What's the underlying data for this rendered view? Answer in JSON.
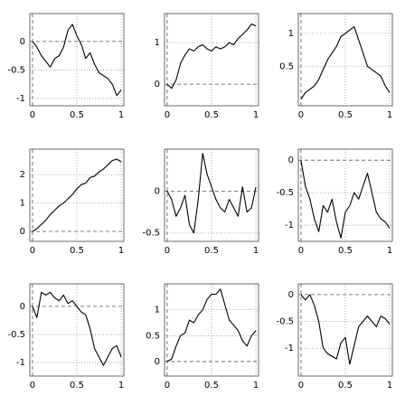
{
  "chart_data": [
    {
      "type": "line",
      "x": [
        0,
        0.05,
        0.1,
        0.15,
        0.2,
        0.25,
        0.3,
        0.35,
        0.4,
        0.45,
        0.5,
        0.55,
        0.6,
        0.65,
        0.7,
        0.75,
        0.8,
        0.85,
        0.9,
        0.95,
        1
      ],
      "values": [
        0,
        -0.1,
        -0.25,
        -0.35,
        -0.45,
        -0.3,
        -0.25,
        -0.1,
        0.2,
        0.3,
        0.1,
        -0.05,
        -0.3,
        -0.2,
        -0.4,
        -0.55,
        -0.6,
        -0.65,
        -0.75,
        -0.95,
        -0.85
      ],
      "color": "#000000",
      "xlim": [
        -0.03,
        1.03
      ],
      "xticks": [
        0,
        0.5,
        1
      ],
      "ylim": [
        -1.13,
        0.49
      ],
      "yticks": [
        -1,
        -0.5,
        0
      ],
      "grid": true
    },
    {
      "type": "line",
      "x": [
        0,
        0.05,
        0.1,
        0.15,
        0.2,
        0.25,
        0.3,
        0.35,
        0.4,
        0.45,
        0.5,
        0.55,
        0.6,
        0.65,
        0.7,
        0.75,
        0.8,
        0.85,
        0.9,
        0.95,
        1
      ],
      "values": [
        0,
        -0.1,
        0.1,
        0.5,
        0.7,
        0.85,
        0.8,
        0.9,
        0.95,
        0.85,
        0.8,
        0.9,
        0.85,
        0.9,
        1.0,
        0.95,
        1.1,
        1.2,
        1.3,
        1.45,
        1.4
      ],
      "color": "#000000",
      "xlim": [
        -0.03,
        1.03
      ],
      "xticks": [
        0,
        0.5,
        1
      ],
      "ylim": [
        -0.52,
        1.7
      ],
      "yticks": [
        0,
        1
      ],
      "grid": true
    },
    {
      "type": "line",
      "x": [
        0,
        0.05,
        0.1,
        0.15,
        0.2,
        0.25,
        0.3,
        0.35,
        0.4,
        0.45,
        0.5,
        0.55,
        0.6,
        0.65,
        0.7,
        0.75,
        0.8,
        0.85,
        0.9,
        0.95,
        1
      ],
      "values": [
        0,
        0.1,
        0.15,
        0.2,
        0.3,
        0.45,
        0.6,
        0.7,
        0.8,
        0.95,
        1.0,
        1.05,
        1.1,
        0.9,
        0.7,
        0.5,
        0.45,
        0.4,
        0.35,
        0.2,
        0.1
      ],
      "color": "#000000",
      "xlim": [
        -0.03,
        1.03
      ],
      "xticks": [
        0,
        0.5,
        1
      ],
      "ylim": [
        -0.1,
        1.3
      ],
      "yticks": [
        0.5,
        1
      ],
      "grid": true
    },
    {
      "type": "line",
      "x": [
        0,
        0.05,
        0.1,
        0.15,
        0.2,
        0.25,
        0.3,
        0.35,
        0.4,
        0.45,
        0.5,
        0.55,
        0.6,
        0.65,
        0.7,
        0.75,
        0.8,
        0.85,
        0.9,
        0.95,
        1
      ],
      "values": [
        0,
        0.1,
        0.25,
        0.4,
        0.6,
        0.75,
        0.9,
        1.0,
        1.15,
        1.3,
        1.5,
        1.65,
        1.7,
        1.9,
        1.95,
        2.1,
        2.2,
        2.35,
        2.5,
        2.55,
        2.45
      ],
      "color": "#000000",
      "xlim": [
        -0.03,
        1.03
      ],
      "xticks": [
        0,
        0.5,
        1
      ],
      "ylim": [
        -0.35,
        2.9
      ],
      "yticks": [
        0,
        1,
        2
      ],
      "grid": true
    },
    {
      "type": "line",
      "x": [
        0,
        0.05,
        0.1,
        0.15,
        0.2,
        0.25,
        0.3,
        0.35,
        0.4,
        0.45,
        0.5,
        0.55,
        0.6,
        0.65,
        0.7,
        0.75,
        0.8,
        0.85,
        0.9,
        0.95,
        1
      ],
      "values": [
        0,
        -0.1,
        -0.3,
        -0.2,
        -0.05,
        -0.4,
        -0.5,
        -0.1,
        0.45,
        0.2,
        0.05,
        -0.1,
        -0.2,
        -0.25,
        -0.1,
        -0.2,
        -0.3,
        0.05,
        -0.25,
        -0.2,
        0.05
      ],
      "color": "#000000",
      "xlim": [
        -0.03,
        1.03
      ],
      "xticks": [
        0,
        0.5,
        1
      ],
      "ylim": [
        -0.6,
        0.5
      ],
      "yticks": [
        -0.5,
        0
      ],
      "grid": true
    },
    {
      "type": "line",
      "x": [
        0,
        0.05,
        0.1,
        0.15,
        0.2,
        0.25,
        0.3,
        0.35,
        0.4,
        0.45,
        0.5,
        0.55,
        0.6,
        0.65,
        0.7,
        0.75,
        0.8,
        0.85,
        0.9,
        0.95,
        1
      ],
      "values": [
        0,
        -0.4,
        -0.6,
        -0.9,
        -1.1,
        -0.7,
        -0.8,
        -0.6,
        -0.95,
        -1.2,
        -0.8,
        -0.7,
        -0.5,
        -0.6,
        -0.4,
        -0.2,
        -0.5,
        -0.8,
        -0.9,
        -0.95,
        -1.05
      ],
      "color": "#000000",
      "xlim": [
        -0.03,
        1.03
      ],
      "xticks": [
        0,
        0.5,
        1
      ],
      "ylim": [
        -1.25,
        0.17
      ],
      "yticks": [
        -1,
        -0.5,
        0
      ],
      "grid": true
    },
    {
      "type": "line",
      "x": [
        0,
        0.05,
        0.1,
        0.15,
        0.2,
        0.25,
        0.3,
        0.35,
        0.4,
        0.45,
        0.5,
        0.55,
        0.6,
        0.65,
        0.7,
        0.75,
        0.8,
        0.85,
        0.9,
        0.95,
        1
      ],
      "values": [
        0,
        -0.2,
        0.25,
        0.2,
        0.25,
        0.15,
        0.1,
        0.2,
        0.05,
        0.1,
        0.0,
        -0.1,
        -0.15,
        -0.4,
        -0.75,
        -0.9,
        -1.05,
        -0.9,
        -0.75,
        -0.7,
        -0.9
      ],
      "color": "#000000",
      "xlim": [
        -0.03,
        1.03
      ],
      "xticks": [
        0,
        0.5,
        1
      ],
      "ylim": [
        -1.24,
        0.4
      ],
      "yticks": [
        -1,
        -0.5,
        0
      ],
      "grid": true
    },
    {
      "type": "line",
      "x": [
        0,
        0.05,
        0.1,
        0.15,
        0.2,
        0.25,
        0.3,
        0.35,
        0.4,
        0.45,
        0.5,
        0.55,
        0.6,
        0.65,
        0.7,
        0.75,
        0.8,
        0.85,
        0.9,
        0.95,
        1
      ],
      "values": [
        0,
        0.05,
        0.3,
        0.5,
        0.55,
        0.8,
        0.75,
        0.9,
        1.0,
        1.2,
        1.3,
        1.3,
        1.4,
        1.1,
        0.8,
        0.7,
        0.6,
        0.4,
        0.3,
        0.5,
        0.6
      ],
      "color": "#000000",
      "xlim": [
        -0.03,
        1.03
      ],
      "xticks": [
        0,
        0.5,
        1
      ],
      "ylim": [
        -0.28,
        1.5
      ],
      "yticks": [
        0,
        0.5,
        1
      ],
      "grid": true
    },
    {
      "type": "line",
      "x": [
        0,
        0.05,
        0.1,
        0.15,
        0.2,
        0.25,
        0.3,
        0.35,
        0.4,
        0.45,
        0.5,
        0.55,
        0.6,
        0.65,
        0.7,
        0.75,
        0.8,
        0.85,
        0.9,
        0.95,
        1
      ],
      "values": [
        0,
        -0.1,
        0,
        -0.2,
        -0.5,
        -1.0,
        -1.1,
        -1.15,
        -1.2,
        -0.9,
        -0.8,
        -1.3,
        -0.95,
        -0.6,
        -0.5,
        -0.4,
        -0.5,
        -0.6,
        -0.4,
        -0.45,
        -0.55
      ],
      "color": "#000000",
      "xlim": [
        -0.03,
        1.03
      ],
      "xticks": [
        0,
        0.5,
        1
      ],
      "ylim": [
        -1.52,
        0.2
      ],
      "yticks": [
        -1,
        -0.5,
        0
      ],
      "grid": true
    }
  ]
}
